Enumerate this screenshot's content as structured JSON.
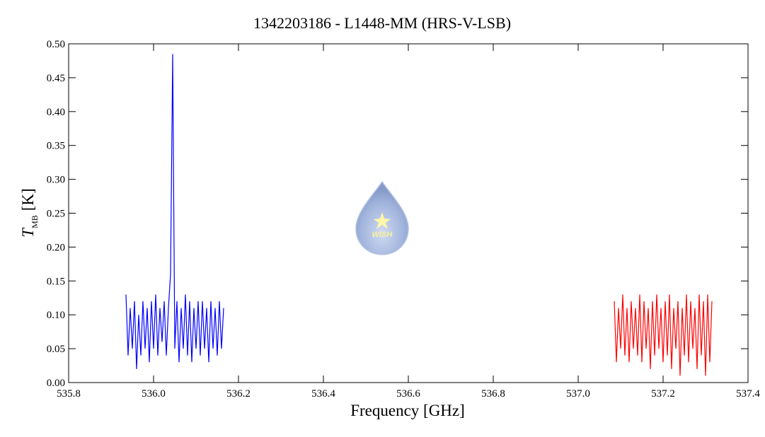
{
  "chart_data": {
    "type": "line",
    "title": "1342203186 - L1448-MM (HRS-V-LSB)",
    "x_label": "Frequency [GHz]",
    "y_label": {
      "symbol": "T",
      "subscript": "MB",
      "unit": "[K]"
    },
    "logo_text": "WISH",
    "xlim": [
      535.8,
      537.4
    ],
    "ylim": [
      0,
      0.5
    ],
    "xticks": [
      535.8,
      {
        "value": 536,
        "label": "536.0"
      },
      536.2,
      536.4,
      536.6,
      536.8,
      {
        "value": 537,
        "label": "537.0"
      },
      537.2,
      537.4
    ],
    "yticks": [
      {
        "value": 0,
        "label": "0.00"
      },
      0.05,
      {
        "value": 0.1,
        "label": "0.10"
      },
      0.15,
      {
        "value": 0.2,
        "label": "0.20"
      },
      0.25,
      {
        "value": 0.3,
        "label": "0.30"
      },
      0.35,
      {
        "value": 0.4,
        "label": "0.40"
      },
      0.45,
      {
        "value": 0.5,
        "label": "0.50"
      }
    ],
    "series": [
      {
        "color": "#0000ff",
        "x": [
          535.935,
          535.94,
          535.945,
          535.95,
          535.955,
          535.96,
          535.965,
          535.97,
          535.975,
          535.98,
          535.985,
          535.99,
          535.995,
          536,
          536.005,
          536.01,
          536.015,
          536.02,
          536.025,
          536.03,
          536.035,
          536.04,
          536.045,
          536.05,
          536.055,
          536.06,
          536.065,
          536.07,
          536.075,
          536.08,
          536.085,
          536.09,
          536.095,
          536.1,
          536.105,
          536.11,
          536.115,
          536.12,
          536.125,
          536.13,
          536.135,
          536.14,
          536.145,
          536.15,
          536.155,
          536.16,
          536.165
        ],
        "values": [
          0.13,
          0.04,
          0.11,
          0.05,
          0.12,
          0.02,
          0.1,
          0.04,
          0.12,
          0.05,
          0.11,
          0.03,
          0.12,
          0.05,
          0.13,
          0.04,
          0.11,
          0.06,
          0.12,
          0.04,
          0.11,
          0.16,
          0.485,
          0.05,
          0.12,
          0.03,
          0.11,
          0.05,
          0.13,
          0.04,
          0.12,
          0.03,
          0.11,
          0.05,
          0.12,
          0.04,
          0.12,
          0.05,
          0.11,
          0.03,
          0.12,
          0.05,
          0.11,
          0.04,
          0.12,
          0.05,
          0.11
        ]
      },
      {
        "color": "#ff0000",
        "x": [
          537.085,
          537.09,
          537.095,
          537.1,
          537.105,
          537.11,
          537.115,
          537.12,
          537.125,
          537.13,
          537.135,
          537.14,
          537.145,
          537.15,
          537.155,
          537.16,
          537.165,
          537.17,
          537.175,
          537.18,
          537.185,
          537.19,
          537.195,
          537.2,
          537.205,
          537.21,
          537.215,
          537.22,
          537.225,
          537.23,
          537.235,
          537.24,
          537.245,
          537.25,
          537.255,
          537.26,
          537.265,
          537.27,
          537.275,
          537.28,
          537.285,
          537.29,
          537.295,
          537.3,
          537.305,
          537.31,
          537.315
        ],
        "values": [
          0.12,
          0.03,
          0.11,
          0.05,
          0.13,
          0.04,
          0.11,
          0.03,
          0.12,
          0.05,
          0.11,
          0.04,
          0.13,
          0.03,
          0.12,
          0.05,
          0.11,
          0.02,
          0.12,
          0.04,
          0.13,
          0.05,
          0.11,
          0.03,
          0.12,
          0.04,
          0.13,
          0.02,
          0.11,
          0.05,
          0.12,
          0.01,
          0.11,
          0.04,
          0.13,
          0.03,
          0.12,
          0.05,
          0.11,
          0.02,
          0.13,
          0.04,
          0.12,
          0.01,
          0.13,
          0.03,
          0.12
        ]
      }
    ]
  }
}
